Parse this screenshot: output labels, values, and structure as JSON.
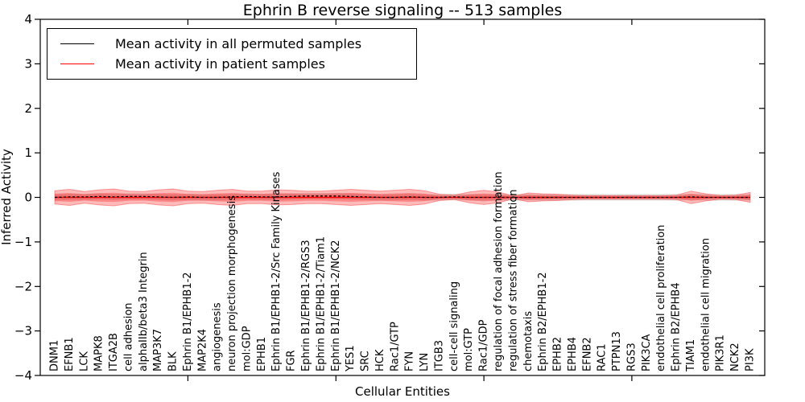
{
  "chart_data": {
    "type": "line",
    "title": "Ephrin B reverse signaling -- 513 samples",
    "xlabel": "Cellular Entities",
    "ylabel": "Inferred Activity",
    "ylim": [
      -4,
      4
    ],
    "ytick_values": [
      -4,
      -3,
      -2,
      -1,
      0,
      1,
      2,
      3,
      4
    ],
    "ytick_labels": [
      "−4",
      "−3",
      "−2",
      "−1",
      "0",
      "1",
      "2",
      "3",
      "4"
    ],
    "xtick_values": [
      10,
      20,
      30,
      40
    ],
    "grid": false,
    "legend_position": "upper left",
    "categories": [
      "DNM1",
      "EFNB1",
      "LCK",
      "MAPK8",
      "ITGA2B",
      "cell adhesion",
      "alphaIIb/beta3 Integrin",
      "MAP3K7",
      "BLK",
      "Ephrin B1/EPHB1-2",
      "MAP2K4",
      "angiogenesis",
      "neuron projection morphogenesis",
      "mol:GDP",
      "EPHB1",
      "Ephrin B1/EPHB1-2/Src Family Kinases",
      "FGR",
      "Ephrin B1/EPHB1-2/RGS3",
      "Ephrin B1/EPHB1-2/Tiam1",
      "Ephrin B1/EPHB1-2/NCK2",
      "YES1",
      "SRC",
      "HCK",
      "Rac1/GTP",
      "FYN",
      "LYN",
      "ITGB3",
      "cell-cell signaling",
      "mol:GTP",
      "Rac1/GDP",
      "regulation of focal adhesion formation",
      "regulation of stress fiber formation",
      "chemotaxis",
      "Ephrin B2/EPHB1-2",
      "EPHB2",
      "EPHB4",
      "EFNB2",
      "RAC1",
      "PTPN13",
      "RGS3",
      "PIK3CA",
      "endothelial cell proliferation",
      "Ephrin B2/EPHB4",
      "TIAM1",
      "endothelial cell migration",
      "PIK3R1",
      "NCK2",
      "PI3K"
    ],
    "series": [
      {
        "name": "Mean activity in all permuted samples",
        "color": "#000000",
        "line_style": "dashed",
        "values": [
          0.0,
          0.01,
          0.01,
          0.02,
          0.01,
          0.02,
          0.02,
          0.01,
          0.0,
          0.01,
          0.0,
          0.0,
          0.01,
          0.02,
          0.01,
          0.01,
          0.02,
          0.03,
          0.03,
          0.03,
          0.02,
          0.01,
          0.0,
          0.0,
          0.01,
          0.0,
          0.0,
          0.01,
          0.0,
          0.0,
          0.0,
          0.0,
          0.0,
          0.0,
          0.0,
          0.0,
          0.0,
          0.0,
          0.0,
          0.0,
          0.0,
          0.0,
          0.0,
          0.01,
          0.0,
          0.0,
          0.0,
          0.0
        ]
      },
      {
        "name": "Mean activity in patient samples",
        "color": "#ff0000",
        "line_style": "solid",
        "values": [
          0.0,
          0.0,
          0.0,
          0.0,
          0.0,
          0.0,
          0.0,
          0.0,
          0.0,
          0.0,
          0.0,
          0.0,
          0.0,
          0.0,
          0.0,
          0.0,
          0.0,
          0.0,
          0.0,
          0.0,
          0.0,
          0.0,
          0.0,
          0.0,
          0.0,
          0.0,
          0.0,
          0.0,
          0.0,
          0.0,
          0.0,
          0.0,
          0.0,
          0.0,
          0.0,
          0.0,
          0.0,
          0.0,
          0.0,
          0.0,
          0.0,
          0.0,
          0.0,
          0.0,
          0.0,
          0.0,
          0.0,
          0.0
        ]
      }
    ],
    "bands": [
      {
        "name": "permuted samples activity spread",
        "color": "#808080",
        "opacity": 0.3,
        "center_series": 0,
        "halfwidth": 0.07
      },
      {
        "name": "patient samples activity spread",
        "color": "#ff0000",
        "opacity": 0.27,
        "center_series": 1,
        "halfwidths": [
          0.15,
          0.18,
          0.13,
          0.17,
          0.19,
          0.14,
          0.13,
          0.17,
          0.19,
          0.14,
          0.13,
          0.16,
          0.18,
          0.14,
          0.14,
          0.17,
          0.16,
          0.14,
          0.14,
          0.16,
          0.18,
          0.16,
          0.14,
          0.16,
          0.18,
          0.15,
          0.07,
          0.05,
          0.12,
          0.16,
          0.12,
          0.03,
          0.1,
          0.08,
          0.07,
          0.05,
          0.04,
          0.04,
          0.04,
          0.04,
          0.04,
          0.04,
          0.05,
          0.14,
          0.08,
          0.04,
          0.05,
          0.11
        ]
      }
    ],
    "inner_band_scale": 0.55
  }
}
